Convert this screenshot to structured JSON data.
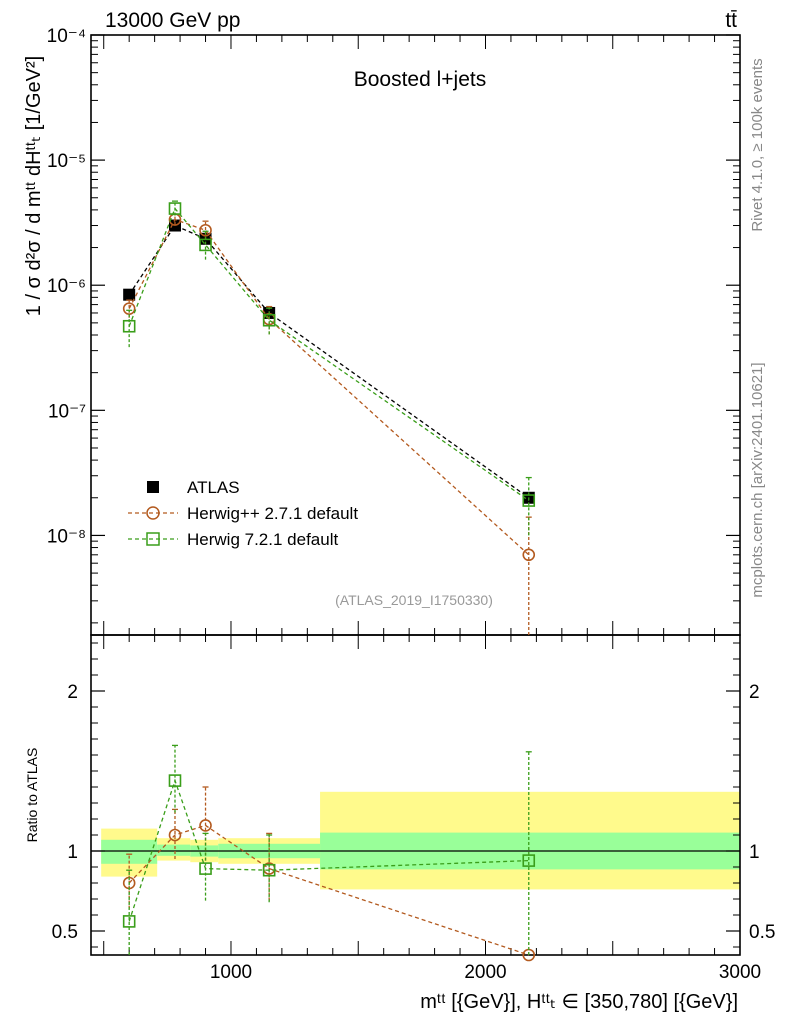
{
  "header": {
    "left": "13000 GeV pp",
    "right": "tt̄"
  },
  "side_labels": {
    "rivet": "Rivet 4.1.0, ≥ 100k events",
    "mcplots": "mcplots.cern.ch [arXiv:2401.10621]"
  },
  "chart_data": [
    {
      "type": "scatter",
      "panel": "main",
      "title": "Boosted l+jets",
      "analysis_id": "(ATLAS_2019_I1750330)",
      "ylabel": "1 / σ d²σ / d mᵗᵗ dHᵗᵗₜ [1/GeV²]",
      "yscale": "log",
      "ylim": [
        1.6e-09,
        0.0001
      ],
      "xlim": [
        450,
        3000
      ],
      "y_tick_labels": [
        "10⁻⁸",
        "10⁻⁷",
        "10⁻⁶",
        "10⁻⁵",
        "10⁻⁴"
      ],
      "y_tick_values": [
        1e-08,
        1e-07,
        1e-06,
        1e-05,
        0.0001
      ],
      "legend": [
        "ATLAS",
        "Herwig++ 2.7.1 default",
        "Herwig 7.2.1 default"
      ],
      "series": [
        {
          "name": "ATLAS",
          "color": "#000000",
          "marker": "filled-square",
          "x": [
            600,
            780,
            900,
            1150,
            2170
          ],
          "y": [
            8.4e-07,
            3e-06,
            2.35e-06,
            6e-07,
            2e-08
          ],
          "err_lo": [
            0,
            0,
            0,
            0,
            0
          ],
          "err_hi": [
            0,
            0,
            0,
            0,
            0
          ]
        },
        {
          "name": "Herwig++ 2.7.1 default",
          "color": "#b35a1f",
          "marker": "open-circle",
          "x": [
            600,
            780,
            900,
            1150,
            2170
          ],
          "y": [
            6.5e-07,
            3.35e-06,
            2.75e-06,
            5.35e-07,
            7e-09
          ],
          "err_lo": [
            1e-07,
            3e-07,
            4.5e-07,
            1.3e-07,
            7e-09
          ],
          "err_hi": [
            1.1e-07,
            3.5e-07,
            5e-07,
            1.4e-07,
            7e-09
          ]
        },
        {
          "name": "Herwig 7.2.1 default",
          "color": "#3a9e1a",
          "marker": "open-square",
          "x": [
            600,
            780,
            900,
            1150,
            2170
          ],
          "y": [
            4.7e-07,
            4.1e-06,
            2.1e-06,
            5.25e-07,
            1.9e-08
          ],
          "err_lo": [
            1.5e-07,
            5e-07,
            5e-07,
            1.2e-07,
            9e-09
          ],
          "err_hi": [
            1.6e-07,
            6e-07,
            6e-07,
            1.3e-07,
            1e-08
          ]
        }
      ]
    },
    {
      "type": "scatter",
      "panel": "ratio",
      "ylabel": "Ratio to ATLAS",
      "xlabel": "mᵗᵗ [{GeV}], Hᵗᵗₜ ∈ [350,780] [{GeV}]",
      "ylim": [
        0.35,
        2.35
      ],
      "xlim": [
        450,
        3000
      ],
      "y_tick_labels": [
        "0.5",
        "1",
        "2"
      ],
      "y_tick_values": [
        0.5,
        1,
        2
      ],
      "x_tick_labels": [
        "1000",
        "2000",
        "3000"
      ],
      "x_tick_values": [
        1000,
        2000,
        3000
      ],
      "bands": [
        {
          "x0": 490,
          "x1": 710,
          "yellow": [
            0.84,
            1.14
          ],
          "green": [
            0.92,
            1.07
          ]
        },
        {
          "x0": 710,
          "x1": 840,
          "yellow": [
            0.94,
            1.08
          ],
          "green": [
            0.97,
            1.04
          ]
        },
        {
          "x0": 840,
          "x1": 950,
          "yellow": [
            0.93,
            1.07
          ],
          "green": [
            0.965,
            1.035
          ]
        },
        {
          "x0": 950,
          "x1": 1350,
          "yellow": [
            0.92,
            1.08
          ],
          "green": [
            0.955,
            1.045
          ]
        },
        {
          "x0": 1350,
          "x1": 3000,
          "yellow": [
            0.76,
            1.37
          ],
          "green": [
            0.885,
            1.115
          ]
        }
      ],
      "series": [
        {
          "name": "Herwig++ 2.7.1 default",
          "color": "#b35a1f",
          "marker": "open-circle",
          "x": [
            600,
            780,
            900,
            1150,
            2170
          ],
          "y": [
            0.8,
            1.1,
            1.16,
            0.89,
            0.35
          ],
          "err_lo": [
            0.16,
            0.15,
            0.22,
            0.2,
            0.0
          ],
          "err_hi": [
            0.18,
            0.16,
            0.24,
            0.22,
            0.0
          ]
        },
        {
          "name": "Herwig 7.2.1 default",
          "color": "#3a9e1a",
          "marker": "open-square",
          "x": [
            600,
            780,
            900,
            1150,
            2170
          ],
          "y": [
            0.56,
            1.44,
            0.89,
            0.88,
            0.94
          ],
          "err_lo": [
            0.3,
            0.2,
            0.2,
            0.2,
            0.6
          ],
          "err_hi": [
            0.32,
            0.22,
            0.22,
            0.22,
            0.68
          ]
        }
      ]
    }
  ]
}
